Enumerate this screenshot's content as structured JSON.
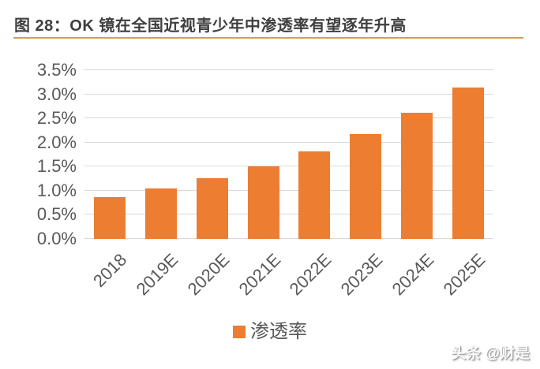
{
  "header": {
    "accent_color": "#D49E53",
    "title_color": "#3F3F3F"
  },
  "chart_data": {
    "type": "bar",
    "title": "图 28：OK 镜在全国近视青少年中渗透率有望逐年升高",
    "categories": [
      "2018",
      "2019E",
      "2020E",
      "2021E",
      "2022E",
      "2023E",
      "2024E",
      "2025E"
    ],
    "series": [
      {
        "name": "渗透率",
        "color": "#ED7D31",
        "values": [
          0.87,
          1.05,
          1.26,
          1.51,
          1.82,
          2.18,
          2.62,
          3.14
        ]
      }
    ],
    "unit": "%",
    "xlabel": "",
    "ylabel": "",
    "ylim": [
      0,
      3.5
    ],
    "yticks": [
      0,
      0.5,
      1.0,
      1.5,
      2.0,
      2.5,
      3.0,
      3.5
    ],
    "ytick_labels": [
      "0.0%",
      "0.5%",
      "1.0%",
      "1.5%",
      "2.0%",
      "2.5%",
      "3.0%",
      "3.5%"
    ],
    "grid": "horizontal",
    "grid_color": "#D9D9D9",
    "axis_text_color": "#595959",
    "legend_position": "bottom",
    "x_tick_rotation": -45
  },
  "watermark": {
    "text": "头条 @财是"
  }
}
